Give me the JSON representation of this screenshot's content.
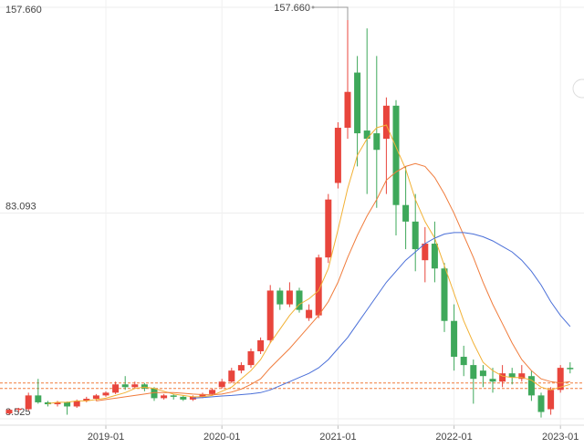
{
  "chart_data": {
    "type": "candlestick",
    "categories": [
      null,
      null,
      null,
      null,
      null,
      null,
      null,
      null,
      null,
      null,
      "2019-01",
      null,
      null,
      null,
      null,
      null,
      null,
      null,
      null,
      null,
      null,
      null,
      "2020-01",
      null,
      null,
      null,
      null,
      null,
      null,
      null,
      null,
      null,
      null,
      null,
      "2021-01",
      null,
      null,
      null,
      null,
      null,
      null,
      null,
      null,
      null,
      null,
      null,
      "2022-01",
      null,
      null,
      null,
      null,
      null,
      null,
      null,
      null,
      null,
      null,
      "2023-01",
      null
    ],
    "open": [
      10.5,
      11.8,
      12,
      17,
      14.5,
      13.8,
      14.5,
      13,
      15,
      15.8,
      17,
      18,
      21,
      20,
      21,
      19.5,
      16,
      17,
      16.5,
      15.5,
      16.5,
      17.5,
      20,
      22,
      26,
      28,
      33,
      37,
      55,
      50,
      55,
      45,
      46,
      67,
      94,
      114,
      134,
      113,
      112,
      110,
      122,
      86,
      80,
      66,
      72,
      63,
      44,
      31,
      28,
      26,
      23,
      22,
      25,
      23,
      24,
      17,
      12,
      19,
      27
    ],
    "close": [
      11.8,
      12.2,
      17,
      14.5,
      13.8,
      14.5,
      13,
      15,
      15.8,
      17,
      18,
      21,
      20,
      21,
      19.5,
      16,
      17,
      16.5,
      15.5,
      16.5,
      17.5,
      19,
      22,
      26,
      28,
      33,
      37,
      55,
      50,
      55,
      48,
      48,
      67,
      88,
      114,
      127,
      112,
      110,
      106,
      122,
      86,
      80,
      70,
      72,
      63,
      44,
      31,
      28,
      23,
      24,
      22,
      25,
      23.5,
      25,
      17,
      11,
      19,
      27,
      26.5
    ],
    "high": [
      12,
      12.5,
      18,
      23,
      15,
      15,
      14.8,
      15.5,
      16.5,
      17.5,
      18.5,
      22,
      24,
      22,
      21.5,
      20,
      17.5,
      17.5,
      17,
      17,
      18,
      19.5,
      23,
      27,
      29,
      34,
      38,
      57,
      56,
      58,
      56,
      50,
      68,
      90,
      116,
      157.66,
      140,
      150,
      140,
      125,
      124,
      100,
      90,
      78,
      80,
      65,
      50,
      35,
      30,
      28,
      27,
      28,
      27,
      28,
      26,
      18,
      20,
      28,
      29
    ],
    "low": [
      10,
      11,
      11.5,
      14,
      13,
      13,
      10,
      12.5,
      14.5,
      15,
      16.5,
      17.5,
      19,
      19.5,
      18.5,
      15,
      15.5,
      15.5,
      15,
      15,
      16,
      17,
      19.5,
      21.5,
      25,
      27,
      32,
      36,
      48,
      49,
      47,
      44,
      45,
      65,
      92,
      110,
      100,
      90,
      85,
      90,
      75,
      70,
      62,
      58,
      58,
      40,
      26,
      24,
      14,
      20,
      18,
      20,
      21,
      22,
      15,
      9,
      10,
      18,
      25
    ],
    "up_color": "#e8453c",
    "down_color": "#3ea85a",
    "series": [
      {
        "color": "#f2b134",
        "values": [
          null,
          null,
          null,
          null,
          14,
          14.5,
          14.5,
          15,
          15,
          15.5,
          16,
          17,
          18,
          19.5,
          20,
          19.5,
          18.5,
          17.5,
          17,
          16.5,
          16.5,
          17,
          18.5,
          20,
          23,
          26,
          30,
          36,
          41,
          46,
          50,
          52,
          55,
          63,
          77,
          92,
          104,
          110,
          114,
          115,
          107,
          99,
          88,
          80,
          74,
          64,
          54,
          44,
          36,
          29,
          26,
          24,
          23.5,
          23.5,
          22.5,
          20,
          19,
          20,
          21
        ]
      },
      {
        "color": "#f07c3c",
        "values": [
          null,
          null,
          null,
          null,
          null,
          null,
          null,
          null,
          null,
          15,
          15.5,
          16,
          16.5,
          17,
          17.5,
          18,
          18,
          18,
          17.8,
          17.5,
          17.3,
          17.2,
          17.5,
          18.2,
          19.3,
          21,
          23,
          27,
          30.5,
          34,
          38,
          42,
          46,
          51,
          58,
          67,
          75,
          82,
          88,
          95,
          98,
          100,
          101,
          100,
          96,
          90,
          83,
          75,
          67,
          58,
          50,
          43,
          36,
          30,
          26,
          23,
          22,
          21.5,
          22
        ]
      },
      {
        "color": "#4a6fd8",
        "values": [
          null,
          null,
          null,
          null,
          null,
          null,
          null,
          null,
          null,
          null,
          null,
          null,
          null,
          null,
          null,
          null,
          null,
          null,
          null,
          16,
          16.2,
          16.5,
          16.8,
          17,
          17.3,
          17.6,
          18,
          19,
          20.5,
          22,
          23.5,
          25,
          27,
          30,
          34,
          38,
          43,
          48,
          53,
          58,
          62,
          66,
          69,
          72,
          74,
          75.5,
          76,
          76,
          75.5,
          74.5,
          73,
          71,
          69,
          66,
          62,
          57,
          51,
          46,
          42
        ]
      }
    ],
    "price_lines": [
      21.5,
      19.5
    ],
    "price_line_color": "#f07c3c",
    "annotation": {
      "label": "157.660",
      "value": 157.66
    },
    "ylim": [
      8.525,
      157.66
    ],
    "yticks": [
      {
        "value": 8.525,
        "label": "8.525"
      },
      {
        "value": 83.093,
        "label": "83.093"
      },
      {
        "value": 157.66,
        "label": "157.660"
      }
    ],
    "grid": true
  }
}
